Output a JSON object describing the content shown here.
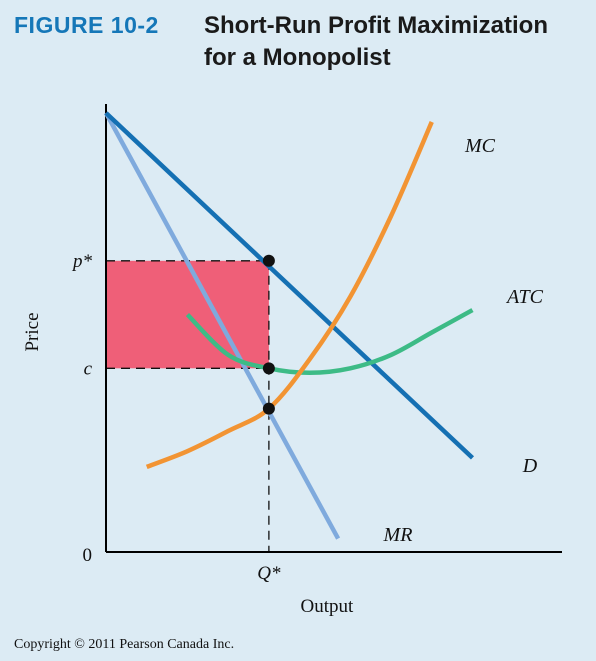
{
  "figure_label": "FIGURE 10-2",
  "title_line1": "Short-Run Profit Maximization",
  "title_line2": "for a Monopolist",
  "copyright": "Copyright © 2011 Pearson Canada Inc.",
  "colors": {
    "demand": "#1570b3",
    "mr": "#7faadd",
    "mc": "#f29433",
    "atc": "#3dbb86",
    "profit_area": "#ef5f78",
    "background": "#dcebf4"
  },
  "chart_data": {
    "type": "line",
    "title": "Short-Run Profit Maximization for a Monopolist",
    "xlabel": "Output",
    "ylabel": "Price",
    "xlim": [
      0,
      100
    ],
    "ylim": [
      0,
      100
    ],
    "x_ticks": [
      {
        "label": "Q*",
        "value": 40
      }
    ],
    "y_ticks": [
      {
        "label": "p*",
        "value": 65
      },
      {
        "label": "c",
        "value": 41
      },
      {
        "label": "0",
        "value": 0
      }
    ],
    "series": [
      {
        "name": "D",
        "points": [
          [
            0,
            98
          ],
          [
            90,
            21
          ]
        ]
      },
      {
        "name": "MR",
        "points": [
          [
            0,
            98
          ],
          [
            57,
            3
          ]
        ]
      },
      {
        "name": "MC",
        "points": [
          [
            10,
            19
          ],
          [
            20,
            22.5
          ],
          [
            30,
            27
          ],
          [
            40,
            32
          ],
          [
            50,
            43
          ],
          [
            60,
            57
          ],
          [
            70,
            75
          ],
          [
            80,
            96
          ]
        ]
      },
      {
        "name": "ATC",
        "points": [
          [
            20,
            53
          ],
          [
            30,
            44
          ],
          [
            40,
            41
          ],
          [
            50,
            40
          ],
          [
            60,
            41
          ],
          [
            70,
            44
          ],
          [
            80,
            49
          ],
          [
            90,
            54
          ]
        ]
      }
    ],
    "shaded_region": {
      "name": "profit",
      "x": [
        0,
        40
      ],
      "y": [
        41,
        65
      ]
    },
    "markers": [
      {
        "x": 40,
        "y": 65
      },
      {
        "x": 40,
        "y": 41
      },
      {
        "x": 40,
        "y": 32
      }
    ]
  }
}
